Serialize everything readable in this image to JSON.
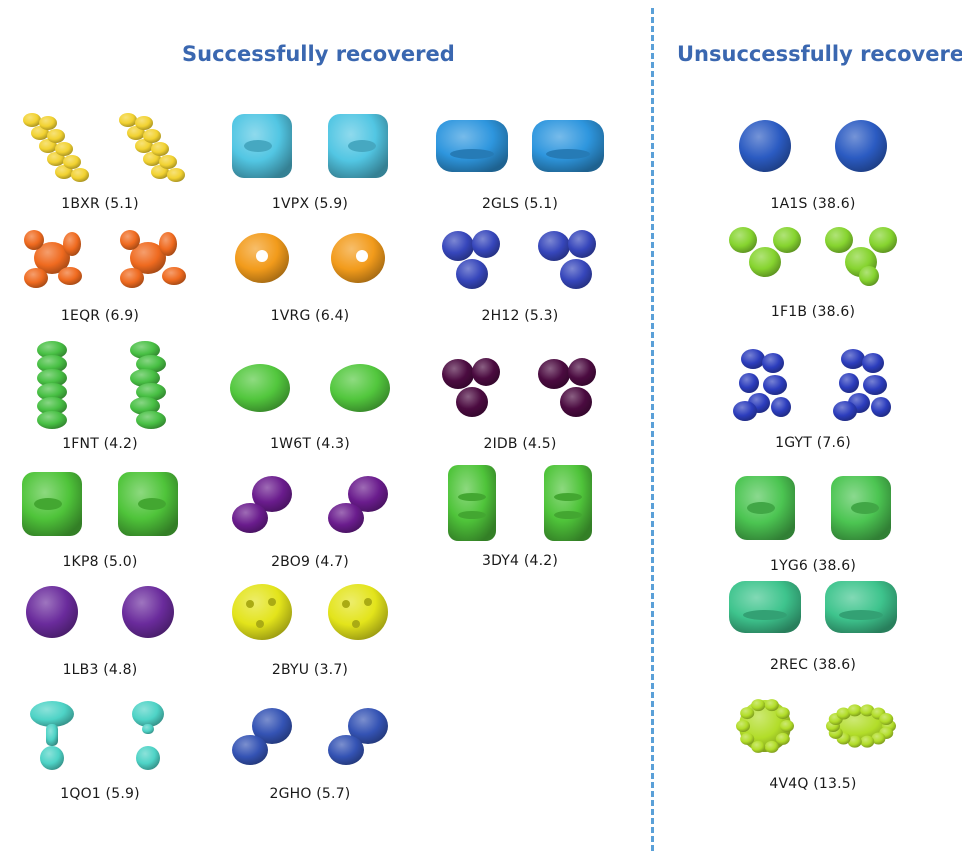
{
  "titles": {
    "success": "Successfully recovered",
    "unsuccess": "Unsuccessfully recovered"
  },
  "structures_success": [
    {
      "id": "1BXR",
      "label": "1BXR (5.1)",
      "value": 5.1,
      "color": "#f2d231",
      "shape": "twin-helix"
    },
    {
      "id": "1VPX",
      "label": "1VPX (5.9)",
      "value": 5.9,
      "color": "#52c6e3",
      "shape": "block"
    },
    {
      "id": "2GLS",
      "label": "2GLS (5.1)",
      "value": 5.1,
      "color": "#2e96de",
      "shape": "wide-block"
    },
    {
      "id": "1EQR",
      "label": "1EQR (6.9)",
      "value": 6.9,
      "color": "#ef6a1f",
      "shape": "star"
    },
    {
      "id": "1VRG",
      "label": "1VRG (6.4)",
      "value": 6.4,
      "color": "#f29b1b",
      "shape": "ring"
    },
    {
      "id": "2H12",
      "label": "2H12 (5.3)",
      "value": 5.3,
      "color": "#3646bb",
      "shape": "trefoil"
    },
    {
      "id": "1FNT",
      "label": "1FNT (4.2)",
      "value": 4.2,
      "color": "#48c044",
      "shape": "column"
    },
    {
      "id": "1W6T",
      "label": "1W6T (4.3)",
      "value": 4.3,
      "color": "#52c73d",
      "shape": "blob"
    },
    {
      "id": "2IDB",
      "label": "2IDB (4.5)",
      "value": 4.5,
      "color": "#4b0b40",
      "shape": "trefoil"
    },
    {
      "id": "1KP8",
      "label": "1KP8 (5.0)",
      "value": 5.0,
      "color": "#4fc43a",
      "shape": "block"
    },
    {
      "id": "2BO9",
      "label": "2BO9 (4.7)",
      "value": 4.7,
      "color": "#6a1c8d",
      "shape": "bean"
    },
    {
      "id": "3DY4",
      "label": "3DY4 (4.2)",
      "value": 4.2,
      "color": "#4fc43a",
      "shape": "tall-block"
    },
    {
      "id": "1LB3",
      "label": "1LB3 (4.8)",
      "value": 4.8,
      "color": "#6a2b9c",
      "shape": "ball"
    },
    {
      "id": "2BYU",
      "label": "2BYU (3.7)",
      "value": 3.7,
      "color": "#e3e41b",
      "shape": "dimple-ball"
    },
    {
      "id": "1QO1",
      "label": "1QO1 (5.9)",
      "value": 5.9,
      "color": "#4ed3c6",
      "shape": "mushroom"
    },
    {
      "id": "2GHO",
      "label": "2GHO (5.7)",
      "value": 5.7,
      "color": "#3453b4",
      "shape": "bean"
    }
  ],
  "structures_unsuccess": [
    {
      "id": "1A1S",
      "label": "1A1S (38.6)",
      "value": 38.6,
      "color": "#2b5bc2",
      "shape": "ball"
    },
    {
      "id": "1F1B",
      "label": "1F1B (38.6)",
      "value": 38.6,
      "color": "#86d42f",
      "shape": "y-shape"
    },
    {
      "id": "1GYT",
      "label": "1GYT (7.6)",
      "value": 7.6,
      "color": "#2c3dbd",
      "shape": "cluster"
    },
    {
      "id": "1YG6",
      "label": "1YG6 (38.6)",
      "value": 38.6,
      "color": "#4cc552",
      "shape": "block"
    },
    {
      "id": "2REC",
      "label": "2REC (38.6)",
      "value": 38.6,
      "color": "#3ec48d",
      "shape": "wide-block"
    },
    {
      "id": "4V4Q",
      "label": "4V4Q (13.5)",
      "value": 13.5,
      "color": "#b2dd29",
      "shape": "fuzzy"
    }
  ]
}
